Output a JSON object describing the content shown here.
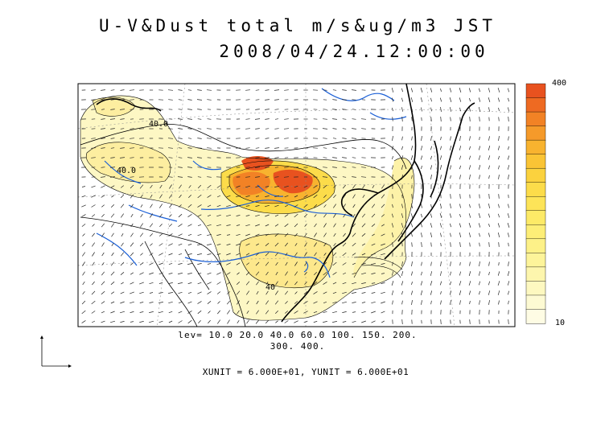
{
  "title": {
    "line1": "U-V&Dust total m/s&ug/m3 JST",
    "line2": "2008/04/24.12:00:00"
  },
  "contour_levels": {
    "line1": "lev= 10.0 20.0 40.0 60.0 100. 150. 200.",
    "line2": "300. 400."
  },
  "units": {
    "text": "XUNIT = 6.000E+01, YUNIT = 6.000E+01"
  },
  "map_labels": {
    "label_a": "40.0",
    "label_b": "40.0",
    "label_c": "40"
  },
  "colorbar": {
    "max_label": "400",
    "min_label": "10",
    "colors": [
      "#e8521f",
      "#ee6a22",
      "#f28225",
      "#f59a2a",
      "#f8b32f",
      "#fac435",
      "#fbd23e",
      "#fcdc4a",
      "#fde458",
      "#fdea67",
      "#fdee77",
      "#fdf188",
      "#fdf49a",
      "#fdf6ad",
      "#fdf8c0",
      "#fdfad3",
      "#fefce4"
    ]
  },
  "colors": {
    "rivers": "#1a5fd6",
    "coast": "#000000",
    "dust_high": "#e8521f",
    "dust_low": "#fdf6b8"
  }
}
